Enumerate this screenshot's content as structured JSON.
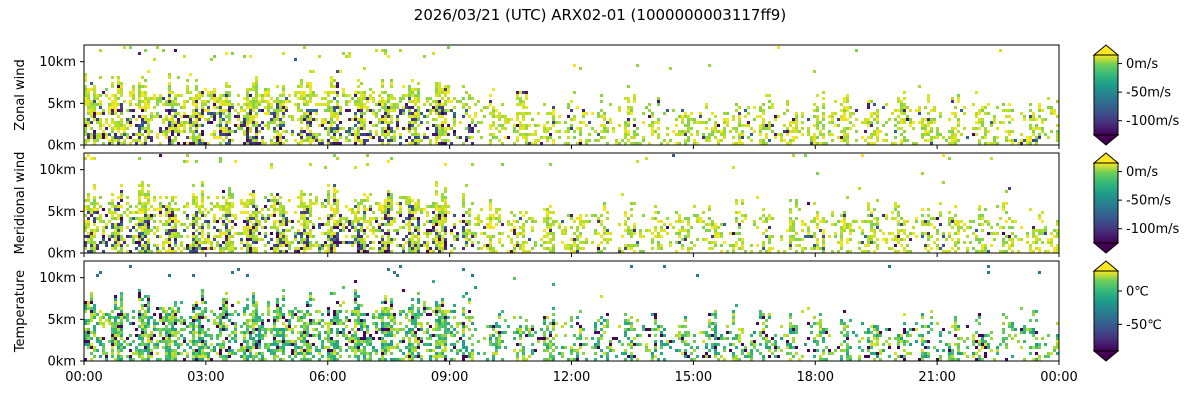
{
  "figure": {
    "title": "2026/03/21 (UTC) ARX02-01 (1000000003117ff9)"
  },
  "x_axis": {
    "ticks": [
      "00:00",
      "03:00",
      "06:00",
      "09:00",
      "12:00",
      "15:00",
      "18:00",
      "21:00",
      "00:00"
    ],
    "range_hours": [
      0,
      24
    ]
  },
  "chart_data": [
    {
      "type": "heatmap",
      "ylabel": "Zonal wind",
      "y_ticks": [
        "0km",
        "5km",
        "10km"
      ],
      "y_tick_values_km": [
        0,
        5,
        10
      ],
      "ylim_km": [
        0,
        12
      ],
      "colorbar": {
        "colormap": "viridis",
        "extend": "both",
        "ticks": [
          "0m/s",
          "-50m/s",
          "-100m/s"
        ],
        "tick_values": [
          0,
          -50,
          -100
        ],
        "range": [
          -125,
          15
        ]
      }
    },
    {
      "type": "heatmap",
      "ylabel": "Meridional wind",
      "y_ticks": [
        "0km",
        "5km",
        "10km"
      ],
      "y_tick_values_km": [
        0,
        5,
        10
      ],
      "ylim_km": [
        0,
        12
      ],
      "colorbar": {
        "colormap": "viridis",
        "extend": "both",
        "ticks": [
          "0m/s",
          "-50m/s",
          "-100m/s"
        ],
        "tick_values": [
          0,
          -50,
          -100
        ],
        "range": [
          -125,
          15
        ]
      }
    },
    {
      "type": "heatmap",
      "ylabel": "Temperature",
      "y_ticks": [
        "0℃",
        "-50℃"
      ],
      "y_axis_ticks": [
        "0km",
        "5km",
        "10km"
      ],
      "y_tick_values_km": [
        0,
        5,
        10
      ],
      "ylim_km": [
        0,
        12
      ],
      "colorbar": {
        "colormap": "viridis",
        "extend": "both",
        "ticks": [
          "0℃",
          "-50℃"
        ],
        "tick_values": [
          0,
          -50
        ],
        "range": [
          -90,
          30
        ]
      }
    }
  ]
}
